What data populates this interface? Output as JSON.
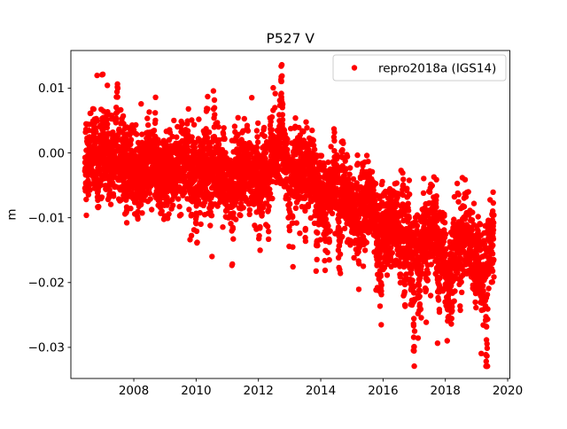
{
  "figure": {
    "background": "#ffffff"
  },
  "chart_data": {
    "type": "scatter",
    "title": "P527 V",
    "xlabel": "",
    "ylabel": "m",
    "xlim": [
      2005.98,
      2020.07
    ],
    "ylim": [
      -0.0348,
      0.0158
    ],
    "x_ticks": [
      2008,
      2010,
      2012,
      2014,
      2016,
      2018,
      2020
    ],
    "x_tick_labels": [
      "2008",
      "2010",
      "2012",
      "2014",
      "2016",
      "2018",
      "2020"
    ],
    "y_ticks": [
      0.01,
      0.0,
      -0.01,
      -0.02,
      -0.03
    ],
    "y_tick_labels": [
      "0.01",
      "0.00",
      "−0.01",
      "−0.02",
      "−0.03"
    ],
    "grid": false,
    "legend": {
      "position": "upper right",
      "frame": true,
      "entries": [
        {
          "label": "repro2018a (IGS14)",
          "color": "#ff0000",
          "marker": "dot"
        }
      ]
    },
    "series": [
      {
        "name": "repro2018a (IGS14)",
        "color": "#ff0000",
        "marker": "dot",
        "marker_radius_px": 3.2,
        "x_start": 2006.43,
        "x_end": 2019.56,
        "cadence_days": 1,
        "trend_keypoints": [
          [
            2006.43,
            -0.0005
          ],
          [
            2007.0,
            -0.001
          ],
          [
            2008.0,
            -0.002
          ],
          [
            2009.0,
            -0.003
          ],
          [
            2010.0,
            -0.0025
          ],
          [
            2011.0,
            -0.0035
          ],
          [
            2012.0,
            -0.003
          ],
          [
            2012.75,
            -0.001
          ],
          [
            2013.4,
            -0.0035
          ],
          [
            2014.5,
            -0.006
          ],
          [
            2015.5,
            -0.0085
          ],
          [
            2016.5,
            -0.0115
          ],
          [
            2017.5,
            -0.013
          ],
          [
            2018.5,
            -0.014
          ],
          [
            2019.56,
            -0.0155
          ]
        ],
        "noise_std_m": 0.003,
        "seasonal_amplitude_m": [
          0.0008,
          0.0018
        ],
        "seasonal_phase": 0.3,
        "down_event_daily_probability": [
          0.004,
          0.013
        ],
        "down_event_depth_m": [
          0.0055,
          0.0145
        ],
        "down_event_duration_days": [
          8,
          35
        ],
        "marked_down_events": [
          [
            2013.85,
            0.011,
            18
          ],
          [
            2015.9,
            0.013,
            20
          ],
          [
            2016.97,
            0.018,
            16
          ],
          [
            2018.05,
            0.012,
            18
          ],
          [
            2019.28,
            0.019,
            28
          ]
        ],
        "up_event_daily_probability": 0.004,
        "up_events_end_year": 2013.3,
        "up_event_height_m": 0.009,
        "up_event_duration_days": [
          6,
          26
        ],
        "marked_up_events": [
          [
            2006.98,
            0.009,
            20
          ],
          [
            2010.55,
            0.01,
            18
          ],
          [
            2012.72,
            0.013,
            22
          ],
          [
            2013.15,
            0.008,
            15
          ]
        ],
        "value_clip_m": [
          -0.0329,
          0.0136
        ],
        "seed": 42
      }
    ]
  }
}
